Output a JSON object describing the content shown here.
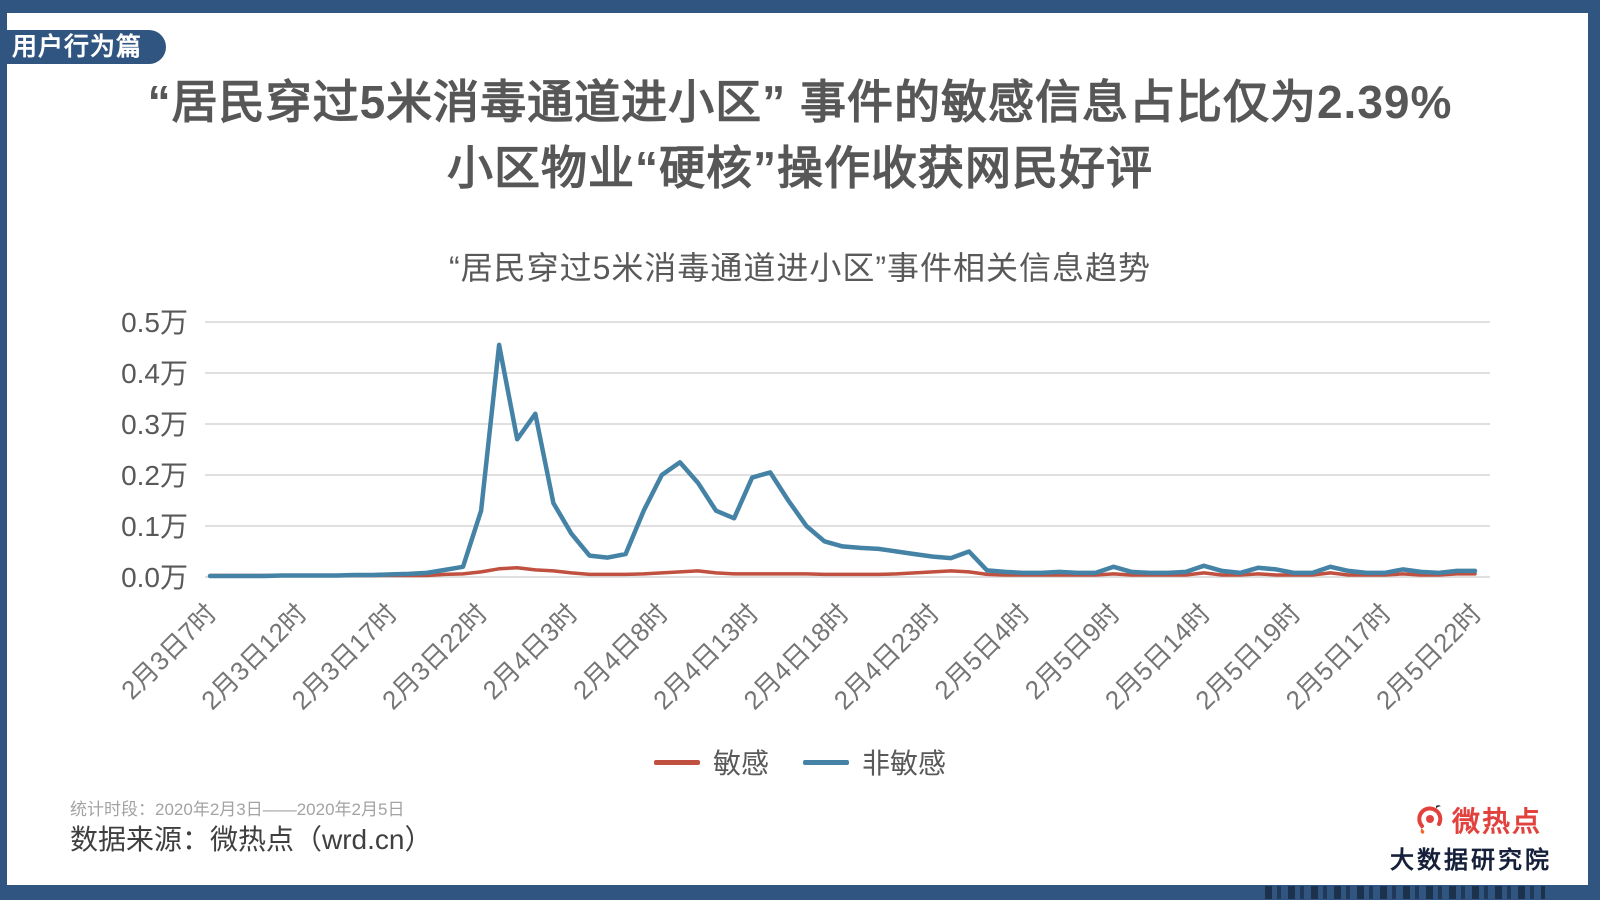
{
  "badge": {
    "label": "用户行为篇"
  },
  "title": {
    "line1": "“居民穿过5米消毒通道进小区” 事件的敏感信息占比仅为2.39%",
    "line2": "小区物业“硬核”操作收获网民好评"
  },
  "chart_data": {
    "type": "line",
    "title": "“居民穿过5米消毒通道进小区”事件相关信息趋势",
    "unit": "万",
    "ylim": [
      0,
      0.5
    ],
    "y_ticks": [
      "0.5万",
      "0.4万",
      "0.3万",
      "0.2万",
      "0.1万",
      "0.0万"
    ],
    "grid": "horizontal",
    "legend_position": "bottom",
    "categories": [
      "2月3日7时",
      "2月3日12时",
      "2月3日17时",
      "2月3日22时",
      "2月4日3时",
      "2月4日8时",
      "2月4日13时",
      "2月4日18时",
      "2月4日23时",
      "2月5日4时",
      "2月5日9时",
      "2月5日14时",
      "2月5日19时",
      "2月5日17时",
      "2月5日22时"
    ],
    "points_per_label_gap": 5,
    "series": [
      {
        "name": "敏感",
        "color": "#c0503f",
        "values": [
          0.003,
          0.003,
          0.003,
          0.003,
          0.003,
          0.003,
          0.003,
          0.003,
          0.003,
          0.003,
          0.003,
          0.003,
          0.003,
          0.005,
          0.006,
          0.01,
          0.016,
          0.018,
          0.014,
          0.012,
          0.008,
          0.005,
          0.005,
          0.005,
          0.006,
          0.008,
          0.01,
          0.012,
          0.008,
          0.006,
          0.006,
          0.006,
          0.006,
          0.006,
          0.005,
          0.005,
          0.005,
          0.005,
          0.006,
          0.008,
          0.01,
          0.012,
          0.01,
          0.005,
          0.004,
          0.004,
          0.004,
          0.004,
          0.004,
          0.004,
          0.006,
          0.004,
          0.004,
          0.004,
          0.004,
          0.008,
          0.004,
          0.004,
          0.006,
          0.004,
          0.004,
          0.004,
          0.008,
          0.004,
          0.004,
          0.004,
          0.006,
          0.004,
          0.004,
          0.006,
          0.006
        ]
      },
      {
        "name": "非敏感",
        "color": "#4583a6",
        "values": [
          0.002,
          0.002,
          0.002,
          0.002,
          0.003,
          0.003,
          0.003,
          0.003,
          0.004,
          0.004,
          0.005,
          0.006,
          0.008,
          0.014,
          0.02,
          0.13,
          0.455,
          0.27,
          0.32,
          0.145,
          0.085,
          0.042,
          0.038,
          0.045,
          0.13,
          0.2,
          0.225,
          0.185,
          0.13,
          0.115,
          0.195,
          0.205,
          0.15,
          0.1,
          0.07,
          0.06,
          0.057,
          0.055,
          0.05,
          0.045,
          0.04,
          0.037,
          0.05,
          0.013,
          0.01,
          0.008,
          0.008,
          0.01,
          0.008,
          0.008,
          0.02,
          0.01,
          0.008,
          0.008,
          0.01,
          0.022,
          0.012,
          0.008,
          0.018,
          0.015,
          0.008,
          0.008,
          0.02,
          0.012,
          0.008,
          0.008,
          0.015,
          0.01,
          0.008,
          0.012,
          0.012
        ]
      }
    ]
  },
  "footer": {
    "period": "统计时段：2020年2月3日——2020年2月5日",
    "source": "数据来源：微热点（wrd.cn）"
  },
  "logo": {
    "brand": "微热点",
    "subtitle": "大数据研究院"
  },
  "colors": {
    "frame_navy": "#2f5580",
    "brand_red": "#e2423e",
    "title_gray": "#575757"
  }
}
